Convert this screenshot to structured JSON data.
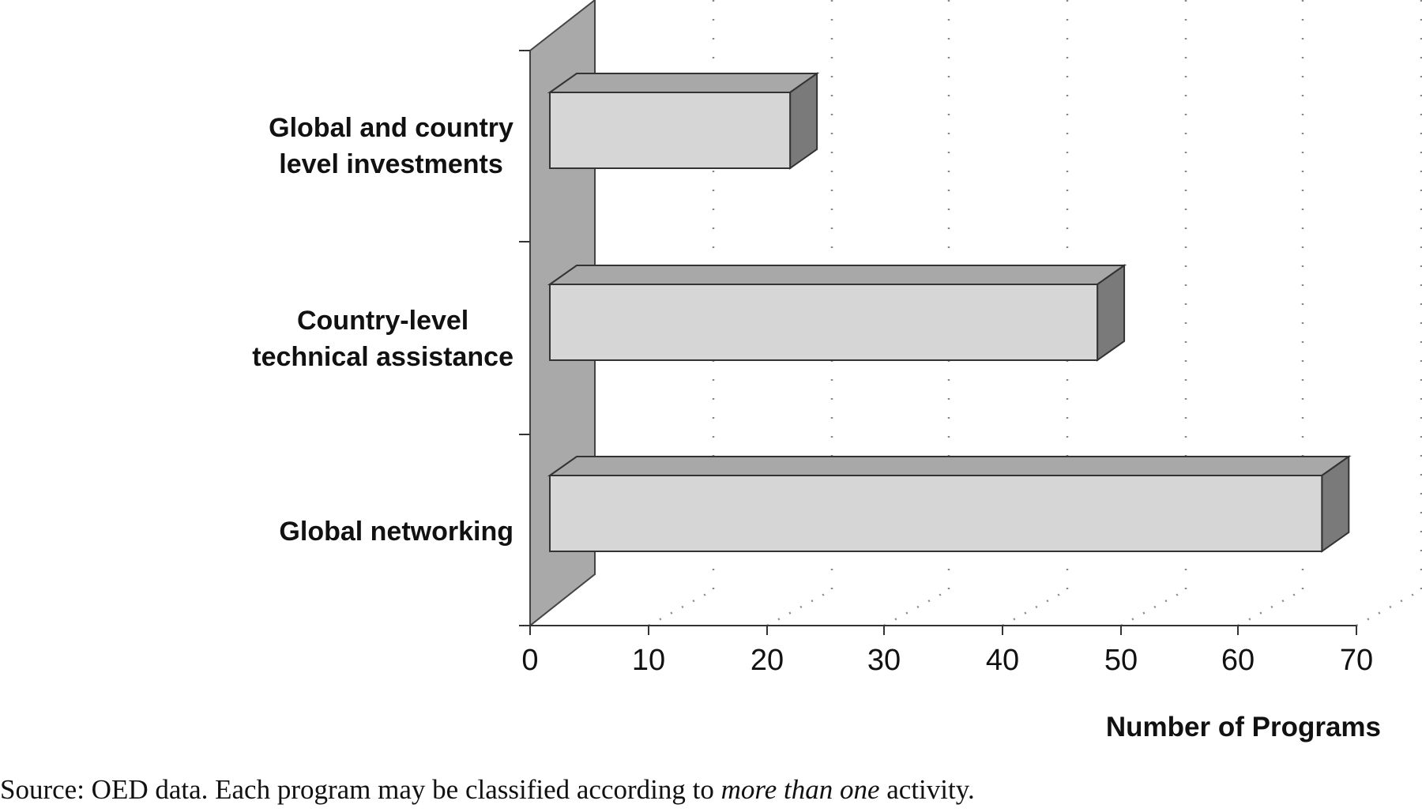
{
  "chart_data": {
    "type": "bar",
    "orientation": "horizontal",
    "style": "3d",
    "categories": [
      "Global and country level investments",
      "Country-level technical assistance",
      "Global networking"
    ],
    "category_lines": [
      [
        "Global and country",
        "level investments"
      ],
      [
        "Country-level",
        "technical assistance"
      ],
      [
        "Global networking"
      ]
    ],
    "values": [
      22,
      48,
      67
    ],
    "xlabel": "Number of Programs",
    "xlim": [
      0,
      70
    ],
    "xticks": [
      0,
      10,
      20,
      30,
      40,
      50,
      60,
      70
    ],
    "grid": "vertical-dotted",
    "bar_front_color": "#d6d6d6",
    "bar_top_color": "#a8a8a8",
    "bar_side_color": "#7a7a7a",
    "wall_color": "#a9a9a9"
  },
  "source": {
    "prefix": "Source: OED data. Each program may be classified according to ",
    "emphasis": "more than one",
    "suffix": " activity."
  }
}
